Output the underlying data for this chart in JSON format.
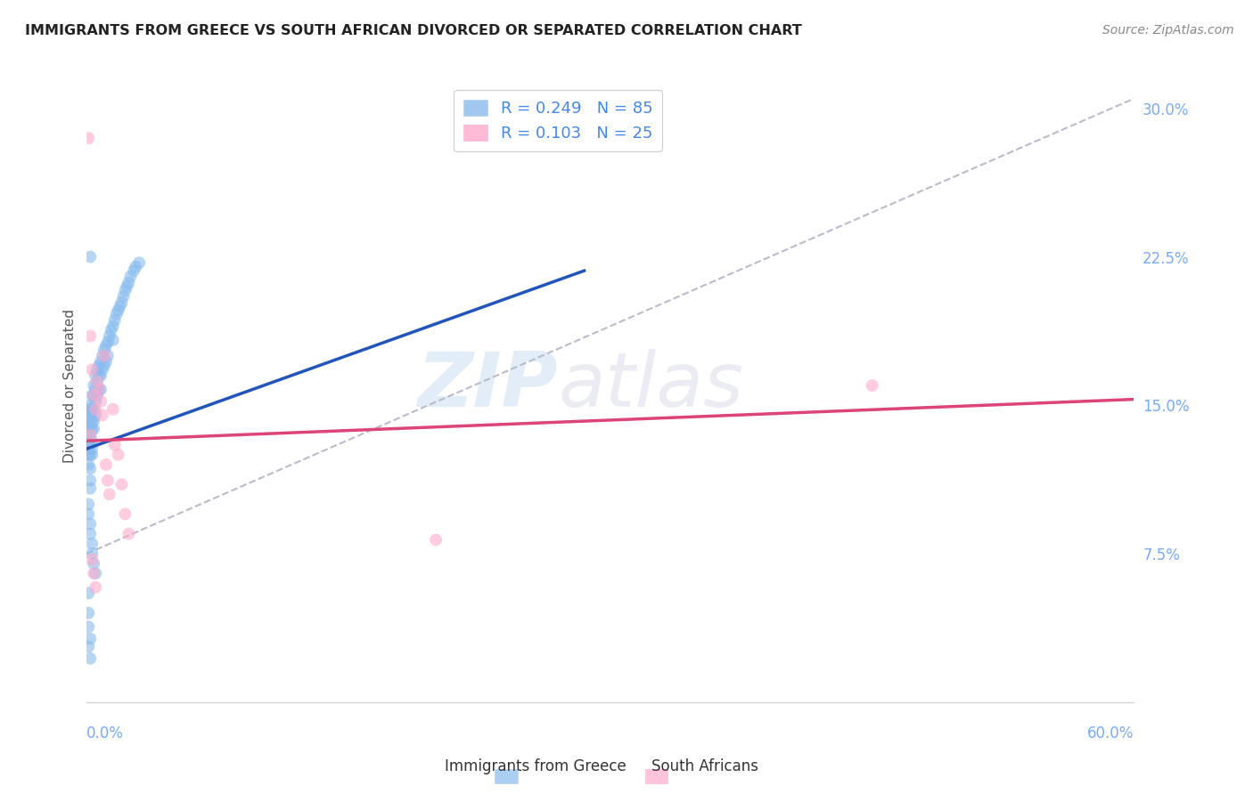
{
  "title": "IMMIGRANTS FROM GREECE VS SOUTH AFRICAN DIVORCED OR SEPARATED CORRELATION CHART",
  "source": "Source: ZipAtlas.com",
  "ylabel": "Divorced or Separated",
  "yticks": [
    0.075,
    0.15,
    0.225,
    0.3
  ],
  "ytick_labels": [
    "7.5%",
    "15.0%",
    "22.5%",
    "30.0%"
  ],
  "xlim": [
    0.0,
    0.6
  ],
  "ylim": [
    0.0,
    0.32
  ],
  "watermark": "ZIPatlas",
  "blue_scatter_x": [
    0.001,
    0.001,
    0.001,
    0.001,
    0.001,
    0.001,
    0.001,
    0.001,
    0.001,
    0.001,
    0.001,
    0.002,
    0.002,
    0.002,
    0.002,
    0.002,
    0.002,
    0.002,
    0.002,
    0.002,
    0.003,
    0.003,
    0.003,
    0.003,
    0.003,
    0.003,
    0.003,
    0.004,
    0.004,
    0.004,
    0.004,
    0.004,
    0.005,
    0.005,
    0.005,
    0.005,
    0.006,
    0.006,
    0.006,
    0.007,
    0.007,
    0.007,
    0.008,
    0.008,
    0.008,
    0.009,
    0.009,
    0.01,
    0.01,
    0.011,
    0.011,
    0.012,
    0.012,
    0.013,
    0.014,
    0.015,
    0.015,
    0.016,
    0.017,
    0.018,
    0.019,
    0.02,
    0.021,
    0.022,
    0.023,
    0.024,
    0.025,
    0.027,
    0.028,
    0.03,
    0.001,
    0.001,
    0.002,
    0.002,
    0.003,
    0.003,
    0.004,
    0.005,
    0.002,
    0.001,
    0.001,
    0.002,
    0.001,
    0.002,
    0.001
  ],
  "blue_scatter_y": [
    0.14,
    0.145,
    0.148,
    0.138,
    0.142,
    0.135,
    0.13,
    0.125,
    0.12,
    0.128,
    0.132,
    0.145,
    0.15,
    0.14,
    0.135,
    0.13,
    0.125,
    0.118,
    0.112,
    0.108,
    0.155,
    0.148,
    0.142,
    0.138,
    0.132,
    0.128,
    0.125,
    0.16,
    0.155,
    0.148,
    0.142,
    0.138,
    0.165,
    0.158,
    0.152,
    0.145,
    0.168,
    0.162,
    0.155,
    0.17,
    0.165,
    0.158,
    0.172,
    0.165,
    0.158,
    0.175,
    0.168,
    0.178,
    0.17,
    0.18,
    0.172,
    0.182,
    0.175,
    0.185,
    0.188,
    0.19,
    0.183,
    0.193,
    0.196,
    0.198,
    0.2,
    0.202,
    0.205,
    0.208,
    0.21,
    0.212,
    0.215,
    0.218,
    0.22,
    0.222,
    0.1,
    0.095,
    0.09,
    0.085,
    0.08,
    0.075,
    0.07,
    0.065,
    0.225,
    0.045,
    0.038,
    0.032,
    0.028,
    0.022,
    0.055
  ],
  "pink_scatter_x": [
    0.001,
    0.002,
    0.003,
    0.004,
    0.005,
    0.006,
    0.007,
    0.008,
    0.009,
    0.01,
    0.011,
    0.012,
    0.013,
    0.015,
    0.016,
    0.018,
    0.02,
    0.022,
    0.024,
    0.003,
    0.004,
    0.005,
    0.45,
    0.2,
    0.002
  ],
  "pink_scatter_y": [
    0.285,
    0.185,
    0.168,
    0.155,
    0.148,
    0.162,
    0.158,
    0.152,
    0.145,
    0.175,
    0.12,
    0.112,
    0.105,
    0.148,
    0.13,
    0.125,
    0.11,
    0.095,
    0.085,
    0.072,
    0.065,
    0.058,
    0.16,
    0.082,
    0.135
  ],
  "blue_line_x": [
    0.0,
    0.285
  ],
  "blue_line_y": [
    0.128,
    0.218
  ],
  "pink_line_x": [
    0.0,
    0.6
  ],
  "pink_line_y": [
    0.132,
    0.153
  ],
  "dashed_line_x": [
    0.0,
    0.6
  ],
  "dashed_line_y": [
    0.075,
    0.305
  ],
  "blue_color": "#88BBEE",
  "pink_color": "#FFAACC",
  "blue_line_color": "#2255BB",
  "pink_line_color": "#DD4477",
  "dashed_line_color": "#BBBBCC",
  "tick_color": "#77AAFF",
  "bg_color": "#FFFFFF",
  "grid_color": "#DDDDEE"
}
